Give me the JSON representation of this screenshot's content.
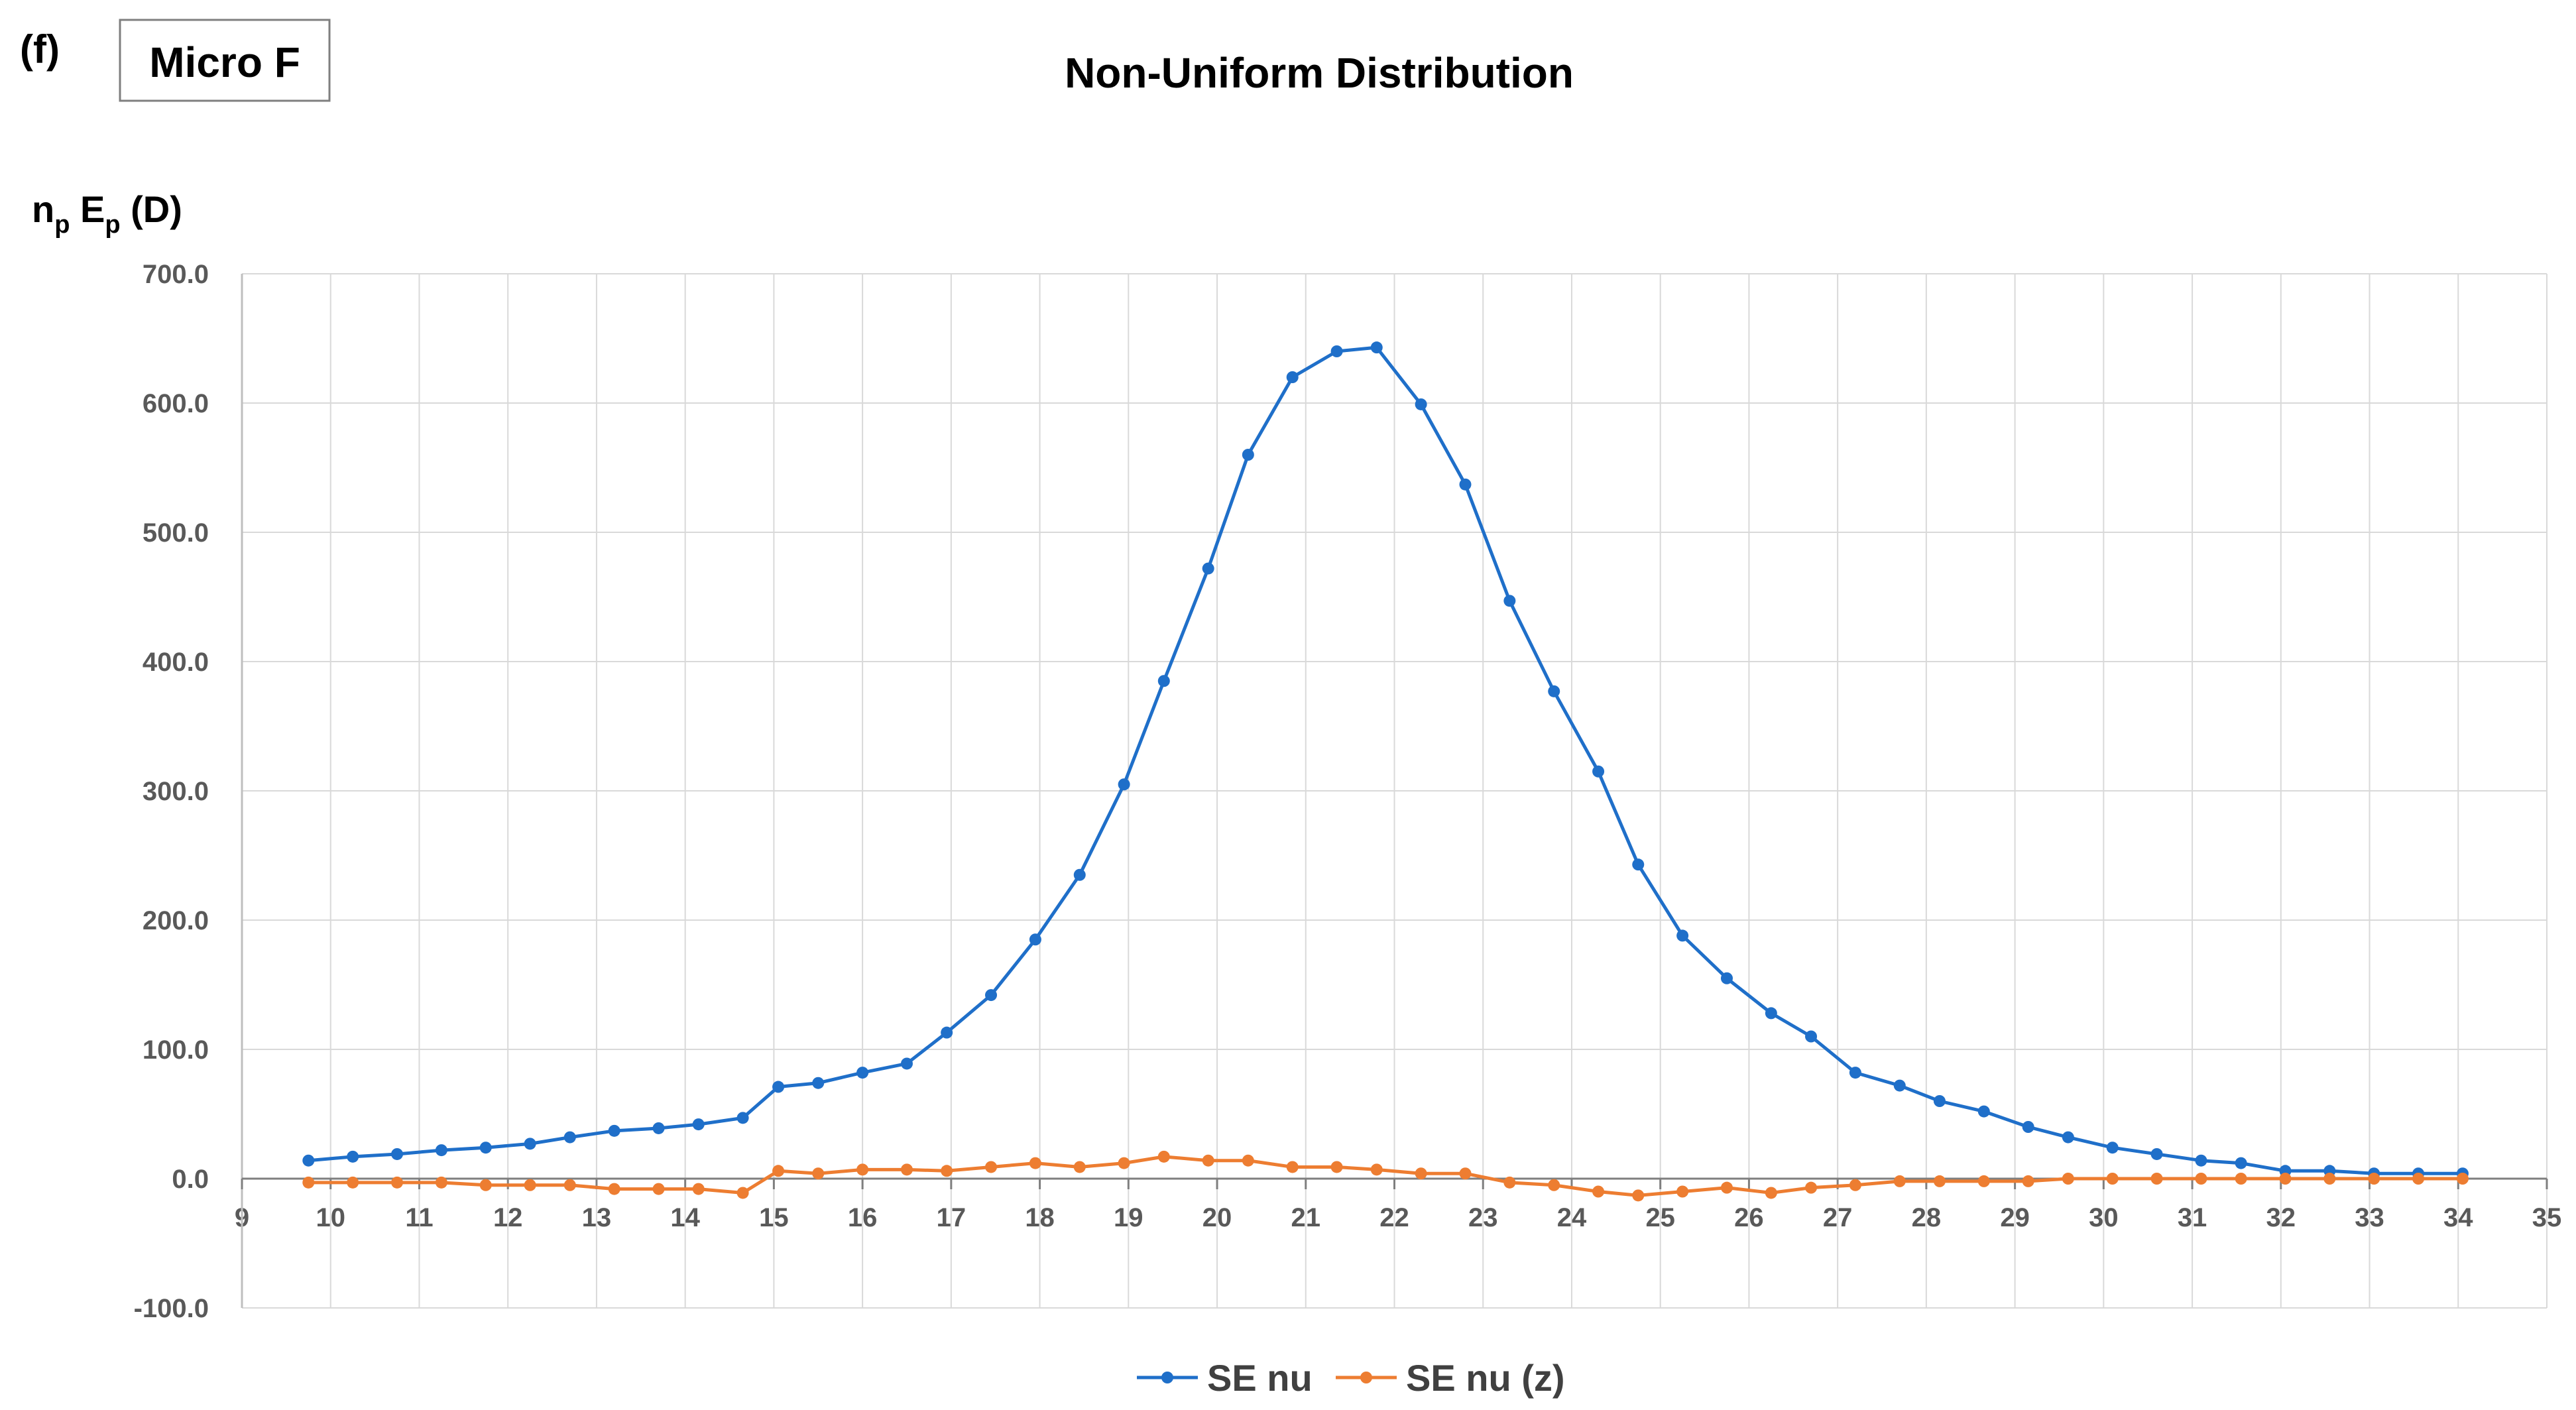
{
  "panel_label": "(f)",
  "panel_box_label": "Micro F",
  "chart_data": {
    "type": "line",
    "title": "Non-Uniform Distribution",
    "ylabel_main": "n",
    "ylabel_sub1": "p",
    "ylabel_mid": " E",
    "ylabel_sub2": "p",
    "ylabel_unit": " (D)",
    "xlim": [
      9,
      35
    ],
    "ylim": [
      -100,
      700
    ],
    "x_ticks": [
      9,
      10,
      11,
      12,
      13,
      14,
      15,
      16,
      17,
      18,
      19,
      20,
      21,
      22,
      23,
      24,
      25,
      26,
      27,
      28,
      29,
      30,
      31,
      32,
      33,
      34,
      35
    ],
    "y_ticks": [
      "700.0",
      "600.0",
      "500.0",
      "400.0",
      "300.0",
      "200.0",
      "100.0",
      "0.0",
      "-100.0"
    ],
    "y_tick_values": [
      700,
      600,
      500,
      400,
      300,
      200,
      100,
      0,
      -100
    ],
    "grid": true,
    "legend_position": "bottom",
    "series": [
      {
        "name": "SE nu",
        "color": "#1f6fc9",
        "x": [
          9.75,
          10.25,
          10.75,
          11.25,
          11.75,
          12.25,
          12.7,
          13.2,
          13.7,
          14.15,
          14.65,
          15.05,
          15.5,
          16.0,
          16.5,
          16.95,
          17.45,
          17.95,
          18.45,
          18.95,
          19.4,
          19.9,
          20.35,
          20.85,
          21.35,
          21.8,
          22.3,
          22.8,
          23.3,
          23.8,
          24.3,
          24.75,
          25.25,
          25.75,
          26.25,
          26.7,
          27.2,
          27.7,
          28.15,
          28.65,
          29.15,
          29.6,
          30.1,
          30.6,
          31.1,
          31.55,
          32.05,
          32.55,
          33.05,
          33.55,
          34.05
        ],
        "y": [
          14,
          17,
          19,
          22,
          24,
          27,
          32,
          37,
          39,
          42,
          47,
          71,
          74,
          82,
          89,
          113,
          142,
          185,
          235,
          305,
          385,
          472,
          560,
          620,
          640,
          643,
          599,
          537,
          447,
          377,
          315,
          243,
          188,
          155,
          128,
          110,
          82,
          72,
          60,
          52,
          40,
          32,
          24,
          19,
          14,
          12,
          6,
          6,
          4,
          4,
          4
        ]
      },
      {
        "name": "SE nu (z)",
        "color": "#ed7d31",
        "x": [
          9.75,
          10.25,
          10.75,
          11.25,
          11.75,
          12.25,
          12.7,
          13.2,
          13.7,
          14.15,
          14.65,
          15.05,
          15.5,
          16.0,
          16.5,
          16.95,
          17.45,
          17.95,
          18.45,
          18.95,
          19.4,
          19.9,
          20.35,
          20.85,
          21.35,
          21.8,
          22.3,
          22.8,
          23.3,
          23.8,
          24.3,
          24.75,
          25.25,
          25.75,
          26.25,
          26.7,
          27.2,
          27.7,
          28.15,
          28.65,
          29.15,
          29.6,
          30.1,
          30.6,
          31.1,
          31.55,
          32.05,
          32.55,
          33.05,
          33.55,
          34.05
        ],
        "y": [
          -3,
          -3,
          -3,
          -3,
          -5,
          -5,
          -5,
          -8,
          -8,
          -8,
          -11,
          6,
          4,
          7,
          7,
          6,
          9,
          12,
          9,
          12,
          17,
          14,
          14,
          9,
          9,
          7,
          4,
          4,
          -3,
          -5,
          -10,
          -13,
          -10,
          -7,
          -11,
          -7,
          -5,
          -2,
          -2,
          -2,
          -2,
          0,
          0,
          0,
          0,
          0,
          0,
          0,
          0,
          0,
          0
        ]
      }
    ]
  }
}
